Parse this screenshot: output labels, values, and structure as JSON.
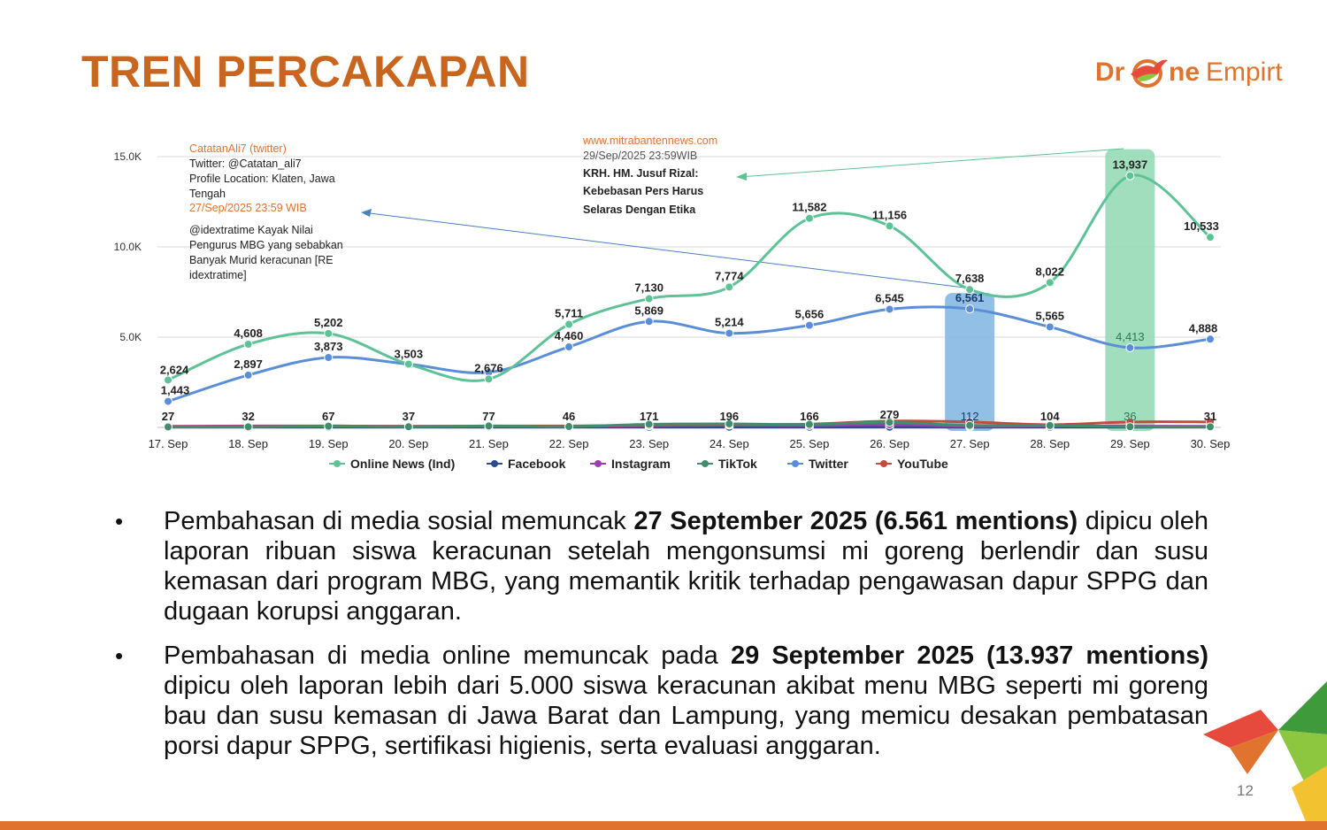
{
  "title": "TREN PERCAKAPAN",
  "logo": {
    "dr": "Dr",
    "ne": "ne",
    "emp": "Empirt"
  },
  "page_number": "12",
  "chart_data": {
    "type": "line",
    "categories": [
      "17. Sep",
      "18. Sep",
      "19. Sep",
      "20. Sep",
      "21. Sep",
      "22. Sep",
      "23. Sep",
      "24. Sep",
      "25. Sep",
      "26. Sep",
      "27. Sep",
      "28. Sep",
      "29. Sep",
      "30. Sep"
    ],
    "ylim": [
      0,
      15000
    ],
    "yticks": [
      {
        "value": 5000,
        "label": "5.0K"
      },
      {
        "value": 10000,
        "label": "10.0K"
      },
      {
        "value": 15000,
        "label": "15.0K"
      }
    ],
    "series": [
      {
        "name": "Online News (Ind)",
        "color": "#5dc296",
        "values": [
          2624,
          4608,
          5202,
          3503,
          2676,
          5711,
          7130,
          7774,
          11582,
          11156,
          7638,
          8022,
          13937,
          10533
        ],
        "labels": [
          "2,624",
          "4,608",
          "5,202",
          "",
          "2,676",
          "5,711",
          "7,130",
          "7,774",
          "11,582",
          "11,156",
          "7,638",
          "8,022",
          "13,937",
          "10,533"
        ]
      },
      {
        "name": "Facebook",
        "color": "#2e4a8f",
        "values": [
          10,
          10,
          10,
          10,
          10,
          10,
          10,
          10,
          10,
          10,
          10,
          10,
          10,
          10
        ],
        "labels": []
      },
      {
        "name": "Instagram",
        "color": "#9b3fb0",
        "values": [
          60,
          80,
          80,
          60,
          60,
          60,
          90,
          120,
          100,
          150,
          60,
          80,
          70,
          60
        ],
        "labels": []
      },
      {
        "name": "TikTok",
        "color": "#3f8f6e",
        "values": [
          27,
          32,
          67,
          37,
          77,
          46,
          171,
          196,
          166,
          279,
          112,
          104,
          36,
          31
        ],
        "labels": [
          "27",
          "32",
          "67",
          "37",
          "77",
          "46",
          "171",
          "196",
          "166",
          "279",
          "112",
          "104",
          "36",
          "31"
        ]
      },
      {
        "name": "Twitter",
        "color": "#5b8ed8",
        "values": [
          1443,
          2897,
          3873,
          3503,
          3050,
          4460,
          5869,
          5214,
          5656,
          6545,
          6561,
          5565,
          4413,
          4888
        ],
        "labels": [
          "1,443",
          "2,897",
          "3,873",
          "3,503",
          "",
          "4,460",
          "5,869",
          "5,214",
          "5,656",
          "6,545",
          "6,561",
          "5,565",
          "4,413",
          "4,888"
        ]
      },
      {
        "name": "YouTube",
        "color": "#c44b3b",
        "values": [
          40,
          50,
          80,
          60,
          80,
          80,
          120,
          150,
          180,
          350,
          300,
          150,
          300,
          300
        ],
        "labels": []
      }
    ],
    "highlights": [
      {
        "category": "27. Sep",
        "color": "#7fb4e0"
      },
      {
        "category": "29. Sep",
        "color": "#8fd8b2"
      }
    ],
    "annotations": [
      {
        "lines": [
          "CatatanAli7 (twitter)",
          "Twitter: @Catatan_ali7",
          "Profile Location: Klaten, Jawa",
          "Tengah",
          "27/Sep/2025 23:59 WIB",
          "@idextratime Kayak Nilai",
          "Pengurus MBG yang sebabkan",
          "Banyak Murid keracunan [RE",
          "idextratime]"
        ]
      },
      {
        "lines": [
          "www.mitrabantennews.com",
          "29/Sep/2025 23:59WIB",
          "KRH. HM. Jusuf Rizal:",
          "Kebebasan Pers Harus",
          "Selaras Dengan Etika"
        ]
      }
    ]
  },
  "bullets": [
    {
      "pre": "Pembahasan di media sosial memuncak ",
      "bold": "27 September 2025 (6.561 mentions)",
      "post": " dipicu oleh laporan ribuan siswa keracunan setelah mengonsumsi mi goreng berlendir dan susu kemasan dari program MBG, yang memantik kritik terhadap pengawasan dapur SPPG dan dugaan korupsi anggaran."
    },
    {
      "pre": "Pembahasan di media online memuncak pada ",
      "bold": "29 September 2025 (13.937 mentions)",
      "post": " dipicu oleh laporan lebih dari 5.000 siswa keracunan akibat menu MBG seperti mi goreng bau dan susu kemasan di Jawa Barat dan Lampung, yang memicu desakan pembatasan porsi dapur SPPG, sertifikasi higienis, serta evaluasi anggaran."
    }
  ],
  "colors": {
    "accent": "#c8651f",
    "orange": "#e0742e"
  }
}
